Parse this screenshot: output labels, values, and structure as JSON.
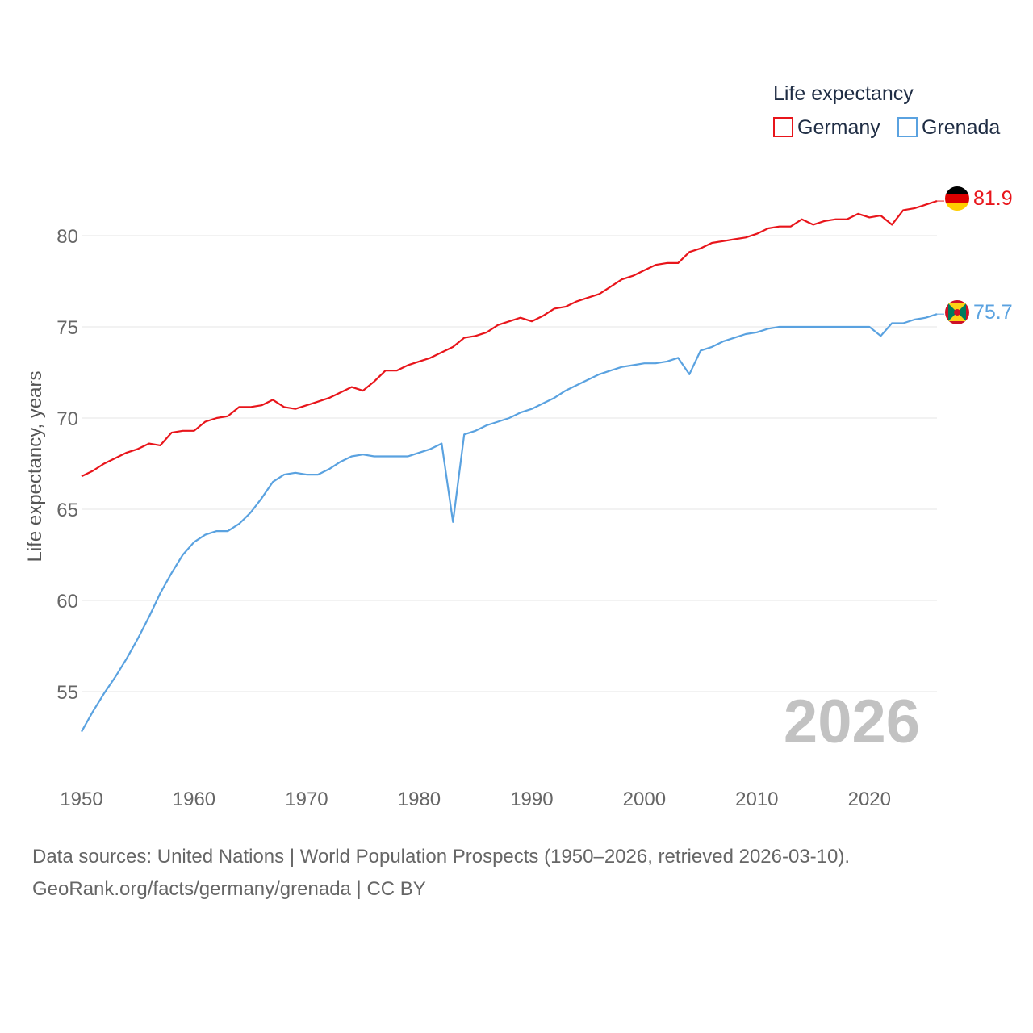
{
  "chart_data": {
    "type": "line",
    "title": "",
    "legend_title": "Life expectancy",
    "ylabel": "Life expectancy, years",
    "xlabel": "",
    "xlim": [
      1950,
      2026
    ],
    "ylim": [
      51.5,
      83.5
    ],
    "x_ticks": [
      1950,
      1960,
      1970,
      1980,
      1990,
      2000,
      2010,
      2020
    ],
    "y_ticks": [
      55,
      60,
      65,
      70,
      75,
      80
    ],
    "year_label": "2026",
    "legend_position": "top-right",
    "x": [
      1950,
      1951,
      1952,
      1953,
      1954,
      1955,
      1956,
      1957,
      1958,
      1959,
      1960,
      1961,
      1962,
      1963,
      1964,
      1965,
      1966,
      1967,
      1968,
      1969,
      1970,
      1971,
      1972,
      1973,
      1974,
      1975,
      1976,
      1977,
      1978,
      1979,
      1980,
      1981,
      1982,
      1983,
      1984,
      1985,
      1986,
      1987,
      1988,
      1989,
      1990,
      1991,
      1992,
      1993,
      1994,
      1995,
      1996,
      1997,
      1998,
      1999,
      2000,
      2001,
      2002,
      2003,
      2004,
      2005,
      2006,
      2007,
      2008,
      2009,
      2010,
      2011,
      2012,
      2013,
      2014,
      2015,
      2016,
      2017,
      2018,
      2019,
      2020,
      2021,
      2022,
      2023,
      2024,
      2025,
      2026
    ],
    "series": [
      {
        "name": "Germany",
        "color": "#e8151b",
        "end_label": "81.9",
        "values": [
          66.8,
          67.1,
          67.5,
          67.8,
          68.1,
          68.3,
          68.6,
          68.5,
          69.2,
          69.3,
          69.3,
          69.8,
          70.0,
          70.1,
          70.6,
          70.6,
          70.7,
          71.0,
          70.6,
          70.5,
          70.7,
          70.9,
          71.1,
          71.4,
          71.7,
          71.5,
          72.0,
          72.6,
          72.6,
          72.9,
          73.1,
          73.3,
          73.6,
          73.9,
          74.4,
          74.5,
          74.7,
          75.1,
          75.3,
          75.5,
          75.3,
          75.6,
          76.0,
          76.1,
          76.4,
          76.6,
          76.8,
          77.2,
          77.6,
          77.8,
          78.1,
          78.4,
          78.5,
          78.5,
          79.1,
          79.3,
          79.6,
          79.7,
          79.8,
          79.9,
          80.1,
          80.4,
          80.5,
          80.5,
          80.9,
          80.6,
          80.8,
          80.9,
          80.9,
          81.2,
          81.0,
          81.1,
          80.6,
          81.4,
          81.5,
          81.7,
          81.9
        ]
      },
      {
        "name": "Grenada",
        "color": "#5aa2e0",
        "end_label": "75.7",
        "values": [
          52.8,
          53.9,
          54.9,
          55.8,
          56.8,
          57.9,
          59.1,
          60.4,
          61.5,
          62.5,
          63.2,
          63.6,
          63.8,
          63.8,
          64.2,
          64.8,
          65.6,
          66.5,
          66.9,
          67.0,
          66.9,
          66.9,
          67.2,
          67.6,
          67.9,
          68.0,
          67.9,
          67.9,
          67.9,
          67.9,
          68.1,
          68.3,
          68.6,
          64.3,
          69.1,
          69.3,
          69.6,
          69.8,
          70.0,
          70.3,
          70.5,
          70.8,
          71.1,
          71.5,
          71.8,
          72.1,
          72.4,
          72.6,
          72.8,
          72.9,
          73.0,
          73.0,
          73.1,
          73.3,
          72.4,
          73.7,
          73.9,
          74.2,
          74.4,
          74.6,
          74.7,
          74.9,
          75.0,
          75.0,
          75.0,
          75.0,
          75.0,
          75.0,
          75.0,
          75.0,
          75.0,
          74.5,
          75.2,
          75.2,
          75.4,
          75.5,
          75.7
        ]
      }
    ]
  },
  "footer": {
    "line1": "Data sources: United Nations | World Population Prospects (1950–2026, retrieved 2026-03-10).",
    "line2": "GeoRank.org/facts/germany/grenada | CC BY"
  },
  "flags": {
    "germany": "germany-flag-icon",
    "grenada": "grenada-flag-icon"
  }
}
